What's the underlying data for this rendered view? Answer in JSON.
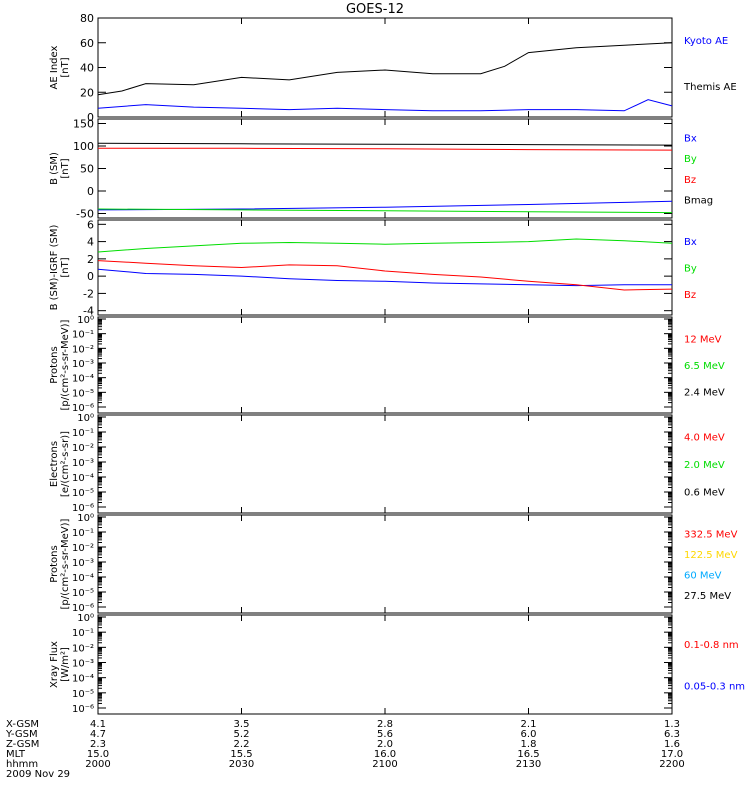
{
  "title": "GOES-12",
  "colors": {
    "black": "#000000",
    "blue": "#0000ff",
    "red": "#ff0000",
    "green": "#00dd00",
    "gold": "#ffd700",
    "cyan": "#00aaff"
  },
  "chart_data": [
    {
      "type": "line",
      "ylabel": "AE Index\n[nT]",
      "ylim": [
        0,
        80
      ],
      "ticks": [
        "0",
        "20",
        "40",
        "60",
        "80"
      ],
      "series": [
        {
          "name": "Kyoto AE",
          "color": "#0000ff",
          "x": [
            0,
            10,
            20,
            30,
            40,
            50,
            60,
            70,
            80,
            90,
            100,
            110,
            115,
            120
          ],
          "values": [
            7,
            10,
            8,
            7,
            6,
            7,
            6,
            5,
            5,
            6,
            6,
            5,
            14,
            9
          ]
        },
        {
          "name": "Themis AE",
          "color": "#000000",
          "x": [
            0,
            5,
            10,
            20,
            30,
            40,
            50,
            60,
            70,
            80,
            85,
            90,
            100,
            110,
            120
          ],
          "values": [
            18,
            21,
            27,
            26,
            32,
            30,
            36,
            38,
            35,
            35,
            41,
            52,
            56,
            58,
            60
          ]
        }
      ]
    },
    {
      "type": "line",
      "ylabel": "B (SM)\n[nT]",
      "ylim": [
        -60,
        160
      ],
      "ticks": [
        "-50",
        "0",
        "50",
        "100",
        "150"
      ],
      "series": [
        {
          "name": "Bx",
          "color": "#0000ff",
          "x": [
            0,
            30,
            60,
            90,
            120
          ],
          "values": [
            -42,
            -40,
            -36,
            -30,
            -23
          ]
        },
        {
          "name": "By",
          "color": "#00dd00",
          "x": [
            0,
            30,
            60,
            90,
            120
          ],
          "values": [
            -40,
            -42,
            -44,
            -46,
            -48
          ]
        },
        {
          "name": "Bz",
          "color": "#ff0000",
          "x": [
            0,
            30,
            60,
            90,
            120
          ],
          "values": [
            95,
            95,
            94,
            92,
            91
          ]
        },
        {
          "name": "Bmag",
          "color": "#000000",
          "x": [
            0,
            30,
            60,
            90,
            120
          ],
          "values": [
            106,
            105,
            104,
            103,
            102
          ]
        }
      ]
    },
    {
      "type": "line",
      "ylabel": "B (SM)-IGRF (SM)\n[nT]",
      "ylim": [
        -4.5,
        6.5
      ],
      "ticks": [
        "-4",
        "-2",
        "0",
        "2",
        "4",
        "6"
      ],
      "series": [
        {
          "name": "Bx",
          "color": "#0000ff",
          "x": [
            0,
            10,
            20,
            30,
            40,
            50,
            60,
            70,
            80,
            90,
            100,
            110,
            120
          ],
          "values": [
            0.8,
            0.3,
            0.2,
            0.0,
            -0.3,
            -0.5,
            -0.6,
            -0.8,
            -0.9,
            -1.0,
            -1.1,
            -1.0,
            -1.0
          ]
        },
        {
          "name": "By",
          "color": "#00dd00",
          "x": [
            0,
            10,
            20,
            30,
            40,
            50,
            60,
            70,
            80,
            90,
            100,
            110,
            120
          ],
          "values": [
            2.8,
            3.2,
            3.5,
            3.8,
            3.9,
            3.8,
            3.7,
            3.8,
            3.9,
            4.0,
            4.3,
            4.1,
            3.8
          ]
        },
        {
          "name": "Bz",
          "color": "#ff0000",
          "x": [
            0,
            10,
            20,
            30,
            40,
            50,
            60,
            70,
            80,
            90,
            100,
            110,
            120
          ],
          "values": [
            1.8,
            1.5,
            1.2,
            1.0,
            1.3,
            1.2,
            0.6,
            0.2,
            -0.1,
            -0.6,
            -1.0,
            -1.6,
            -1.5
          ]
        }
      ]
    },
    {
      "type": "line",
      "ylabel": "Protons\n[p/(cm²-s-sr-MeV)]",
      "log": true,
      "ticks": [
        "10⁻⁶",
        "10⁻⁵",
        "10⁻⁴",
        "10⁻³",
        "10⁻²",
        "10⁻¹",
        "10⁰"
      ],
      "series": [
        {
          "name": "12 MeV",
          "color": "#ff0000",
          "values": []
        },
        {
          "name": "6.5 MeV",
          "color": "#00dd00",
          "values": []
        },
        {
          "name": "2.4 MeV",
          "color": "#000000",
          "values": []
        }
      ]
    },
    {
      "type": "line",
      "ylabel": "Electrons\n[e/(cm²-s-sr)]",
      "log": true,
      "ticks": [
        "10⁻⁶",
        "10⁻⁵",
        "10⁻⁴",
        "10⁻³",
        "10⁻²",
        "10⁻¹",
        "10⁰"
      ],
      "series": [
        {
          "name": "4.0 MeV",
          "color": "#ff0000",
          "values": []
        },
        {
          "name": "2.0 MeV",
          "color": "#00dd00",
          "values": []
        },
        {
          "name": "0.6 MeV",
          "color": "#000000",
          "values": []
        }
      ]
    },
    {
      "type": "line",
      "ylabel": "Protons\n[p/(cm²-s-sr-MeV)]",
      "log": true,
      "ticks": [
        "10⁻⁶",
        "10⁻⁵",
        "10⁻⁴",
        "10⁻³",
        "10⁻²",
        "10⁻¹",
        "10⁰"
      ],
      "series": [
        {
          "name": "332.5 MeV",
          "color": "#ff0000",
          "values": []
        },
        {
          "name": "122.5 MeV",
          "color": "#ffd700",
          "values": []
        },
        {
          "name": "60 MeV",
          "color": "#00aaff",
          "values": []
        },
        {
          "name": "27.5 MeV",
          "color": "#000000",
          "values": []
        }
      ]
    },
    {
      "type": "line",
      "ylabel": "Xray Flux\n[W/m²]",
      "log": true,
      "ticks": [
        "10⁻⁶",
        "10⁻⁵",
        "10⁻⁴",
        "10⁻³",
        "10⁻²",
        "10⁻¹",
        "10⁰"
      ],
      "series": [
        {
          "name": "0.1-0.8 nm",
          "color": "#ff0000",
          "values": []
        },
        {
          "name": "0.05-0.3 nm",
          "color": "#0000ff",
          "values": []
        }
      ]
    }
  ],
  "x_axis": {
    "row_labels": [
      "X-GSM",
      "Y-GSM",
      "Z-GSM",
      "MLT",
      "hhmm"
    ],
    "columns": [
      [
        "4.1",
        "4.7",
        "2.3",
        "15.0",
        "2000"
      ],
      [
        "3.5",
        "5.2",
        "2.2",
        "15.5",
        "2030"
      ],
      [
        "2.8",
        "5.6",
        "2.0",
        "16.0",
        "2100"
      ],
      [
        "2.1",
        "6.0",
        "1.8",
        "16.5",
        "2130"
      ],
      [
        "1.3",
        "6.3",
        "1.6",
        "17.0",
        "2200"
      ]
    ],
    "date": "2009 Nov 29"
  }
}
